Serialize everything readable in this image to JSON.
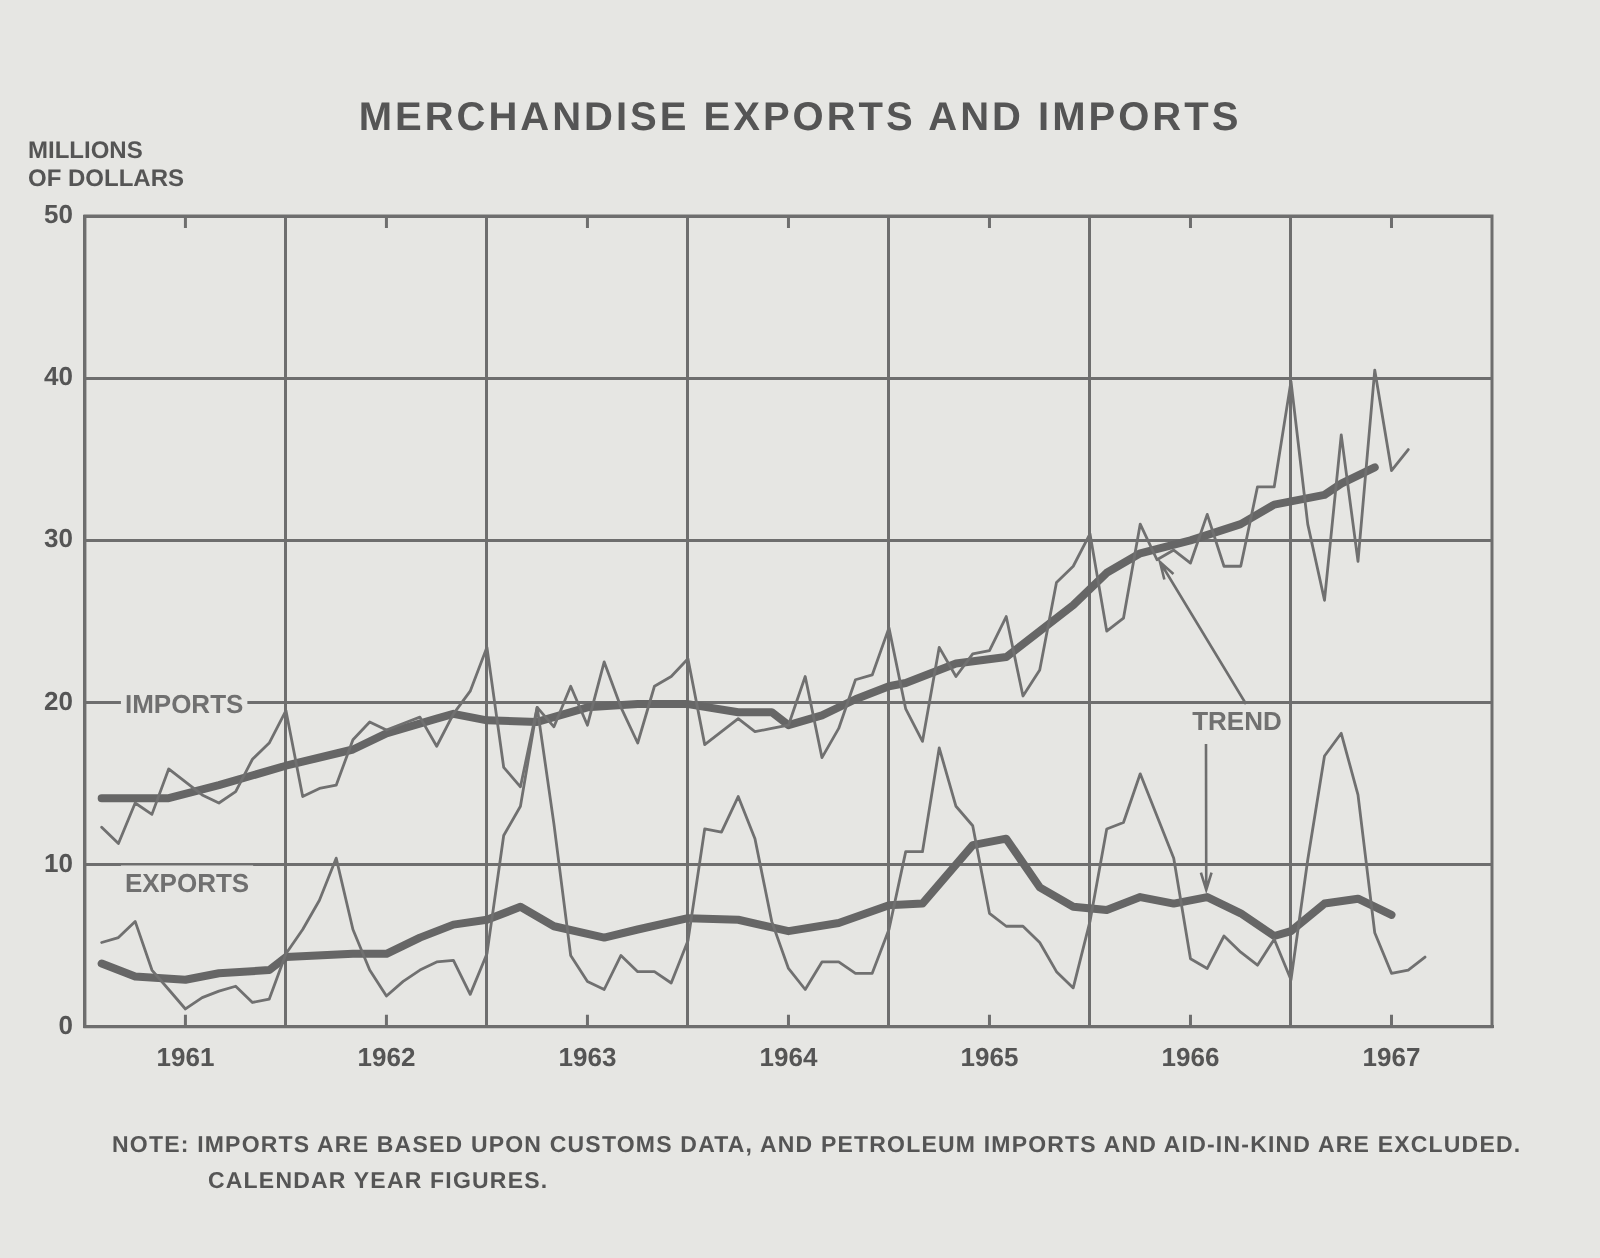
{
  "chart_data": {
    "type": "line",
    "title": "MERCHANDISE EXPORTS AND IMPORTS",
    "ylabel": "MILLIONS\nOF DOLLARS",
    "x": [
      "1961-02",
      "1961-03",
      "1961-04",
      "1961-05",
      "1961-06",
      "1961-07",
      "1961-08",
      "1961-09",
      "1961-10",
      "1961-11",
      "1961-12",
      "1962-01",
      "1962-02",
      "1962-03",
      "1962-04",
      "1962-05",
      "1962-06",
      "1962-07",
      "1962-08",
      "1962-09",
      "1962-10",
      "1962-11",
      "1962-12",
      "1963-01",
      "1963-02",
      "1963-03",
      "1963-04",
      "1963-05",
      "1963-06",
      "1963-07",
      "1963-08",
      "1963-09",
      "1963-10",
      "1963-11",
      "1963-12",
      "1964-01",
      "1964-02",
      "1964-03",
      "1964-04",
      "1964-05",
      "1964-06",
      "1964-07",
      "1964-08",
      "1964-09",
      "1964-10",
      "1964-11",
      "1964-12",
      "1965-01",
      "1965-02",
      "1965-03",
      "1965-04",
      "1965-05",
      "1965-06",
      "1965-07",
      "1965-08",
      "1965-09",
      "1965-10",
      "1965-11",
      "1965-12",
      "1966-01",
      "1966-02",
      "1966-03",
      "1966-04",
      "1966-05",
      "1966-06",
      "1966-07",
      "1966-08",
      "1966-09",
      "1966-10",
      "1966-11",
      "1966-12",
      "1967-01",
      "1967-02",
      "1967-03",
      "1967-04",
      "1967-05",
      "1967-06",
      "1967-07",
      "1967-08",
      "1967-09"
    ],
    "series": [
      {
        "name": "IMPORTS",
        "color": "#707070",
        "values": [
          12.3,
          11.3,
          13.8,
          13.1,
          15.9,
          15.1,
          14.3,
          13.8,
          14.5,
          16.5,
          17.5,
          19.5,
          14.2,
          14.7,
          14.9,
          17.7,
          18.8,
          18.3,
          18.7,
          19.1,
          17.3,
          19.3,
          20.7,
          23.4,
          16.0,
          14.8,
          19.7,
          18.5,
          21.0,
          18.6,
          22.5,
          19.7,
          17.5,
          21.0,
          21.6,
          22.7,
          17.4,
          18.2,
          19.0,
          18.2,
          18.4,
          18.6,
          21.6,
          16.6,
          18.4,
          21.4,
          21.7,
          24.6,
          19.6,
          17.6,
          23.4,
          21.6,
          23.0,
          23.2,
          25.3,
          20.4,
          22.0,
          27.4,
          28.4,
          30.4,
          24.4,
          25.2,
          31.0,
          28.8,
          29.4,
          28.6,
          31.6,
          28.4,
          28.4,
          33.3,
          33.3,
          39.8,
          31.0,
          26.3,
          36.5,
          28.7,
          40.5,
          34.3,
          35.6,
          null
        ]
      },
      {
        "name": "EXPORTS",
        "color": "#707070",
        "values": [
          5.2,
          5.5,
          6.5,
          3.5,
          2.3,
          1.1,
          1.8,
          2.2,
          2.5,
          1.5,
          1.7,
          4.5,
          6.0,
          7.8,
          10.4,
          6.0,
          3.5,
          1.9,
          2.8,
          3.5,
          4.0,
          4.1,
          2.0,
          4.5,
          11.8,
          13.6,
          19.7,
          12.5,
          4.4,
          2.8,
          2.3,
          4.4,
          3.4,
          3.4,
          2.7,
          5.3,
          12.2,
          12.0,
          14.2,
          11.6,
          6.5,
          3.6,
          2.3,
          4.0,
          4.0,
          3.3,
          3.3,
          6.0,
          10.8,
          10.8,
          17.2,
          13.6,
          12.4,
          7.0,
          6.2,
          6.2,
          5.2,
          3.4,
          2.4,
          6.5,
          12.2,
          12.6,
          15.6,
          13.0,
          10.4,
          4.2,
          3.6,
          5.6,
          4.6,
          3.8,
          5.4,
          2.9,
          10.3,
          16.7,
          18.1,
          14.3,
          5.8,
          3.3,
          3.5,
          4.3
        ]
      },
      {
        "color": "#666666",
        "x": [
          "1961-02",
          "1961-06",
          "1961-09",
          "1962-01",
          "1962-05",
          "1962-07",
          "1962-10",
          "1962-11",
          "1963-01",
          "1963-04",
          "1963-07",
          "1963-10",
          "1964-01",
          "1964-04",
          "1964-06",
          "1964-07",
          "1964-09",
          "1964-11",
          "1965-01",
          "1965-02",
          "1965-05",
          "1965-08",
          "1965-10",
          "1965-12",
          "1966-02",
          "1966-04",
          "1966-07",
          "1966-10",
          "1966-12",
          "1967-03",
          "1967-04",
          "1967-06"
        ],
        "values": [
          14.1,
          14.1,
          14.9,
          16.1,
          17.1,
          18.1,
          19.0,
          19.3,
          18.9,
          18.8,
          19.7,
          19.9,
          19.9,
          19.4,
          19.4,
          18.6,
          19.2,
          20.2,
          21.0,
          21.2,
          22.4,
          22.8,
          24.4,
          26.0,
          28.0,
          29.2,
          30.0,
          31.0,
          32.2,
          32.8,
          33.5,
          34.5
        ]
      },
      {
        "color": "#666666",
        "x": [
          "1961-02",
          "1961-04",
          "1961-07",
          "1961-09",
          "1961-12",
          "1962-01",
          "1962-05",
          "1962-07",
          "1962-09",
          "1962-11",
          "1963-01",
          "1963-03",
          "1963-05",
          "1963-08",
          "1963-10",
          "1964-01",
          "1964-04",
          "1964-07",
          "1964-10",
          "1965-01",
          "1965-03",
          "1965-06",
          "1965-08",
          "1965-10",
          "1965-12",
          "1966-02",
          "1966-04",
          "1966-06",
          "1966-08",
          "1966-10",
          "1966-12",
          "1967-01",
          "1967-03",
          "1967-05",
          "1967-07"
        ],
        "values": [
          3.9,
          3.1,
          2.9,
          3.3,
          3.5,
          4.3,
          4.5,
          4.5,
          5.5,
          6.3,
          6.6,
          7.4,
          6.2,
          5.5,
          6.0,
          6.7,
          6.6,
          5.9,
          6.4,
          7.5,
          7.6,
          11.2,
          11.6,
          8.6,
          7.4,
          7.2,
          8.0,
          7.6,
          8.0,
          7.0,
          5.6,
          5.9,
          7.6,
          7.9,
          6.9
        ]
      }
    ],
    "xlim": [
      "1961",
      "1968"
    ],
    "xticks": [
      {
        "value": "1961-07-01",
        "label": "1961"
      },
      {
        "value": "1962",
        "label": null
      },
      {
        "value": "1962-07-01",
        "label": "1962"
      },
      {
        "value": "1963",
        "label": null
      },
      {
        "value": "1963-07-01",
        "label": "1963"
      },
      {
        "value": "1964",
        "label": null
      },
      {
        "value": "1964-07-01",
        "label": "1964"
      },
      {
        "value": "1965",
        "label": null
      },
      {
        "value": "1965-07-01",
        "label": "1965"
      },
      {
        "value": "1966",
        "label": null
      },
      {
        "value": "1966-07-01",
        "label": "1966"
      },
      {
        "value": "1967",
        "label": null
      },
      {
        "value": "1967-07-01",
        "label": "1967"
      }
    ],
    "ylim": [
      0,
      50
    ],
    "yticks": [
      0,
      10,
      20,
      30,
      40,
      50
    ],
    "grid": true,
    "marker": "none",
    "annotations": [
      {
        "text": "TREND",
        "x": "1966-05",
        "y": 29.2
      },
      "NOTE: IMPORTS ARE BASED UPON CUSTOMS DATA, AND PETROLEUM IMPORTS AND AID-IN-KIND ARE EXCLUDED.",
      "CALENDAR YEAR FIGURES."
    ]
  }
}
